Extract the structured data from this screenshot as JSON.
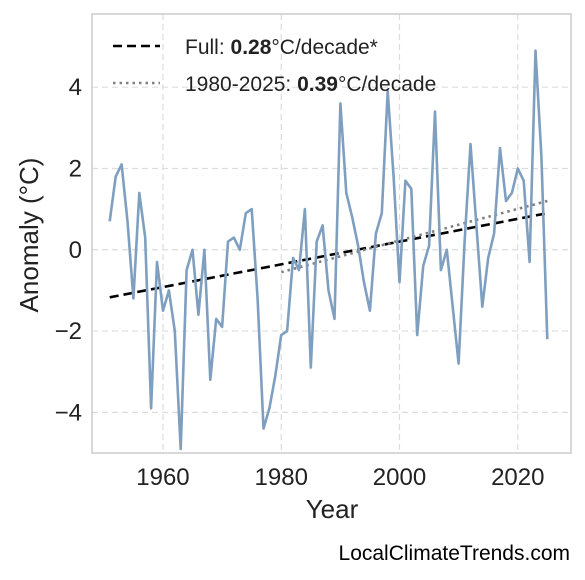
{
  "chart_data": {
    "type": "line",
    "title": "",
    "xlabel": "Year",
    "ylabel": "Anomaly (°C)",
    "xlim": [
      1948,
      2029
    ],
    "ylim": [
      -5.0,
      5.8
    ],
    "xticks": [
      1960,
      1980,
      2000,
      2020
    ],
    "yticks": [
      -4,
      -2,
      0,
      2,
      4
    ],
    "ytick_labels": [
      "−4",
      "−2",
      "0",
      "2",
      "4"
    ],
    "grid": true,
    "legend_position": "top-left",
    "colors": {
      "series": "#7f9fc0",
      "full_trend": "#000000",
      "recent_trend": "#808080",
      "grid": "#dddddd",
      "frame": "#cccccc"
    },
    "series": [
      {
        "x": [
          1951,
          1952,
          1953,
          1954,
          1955,
          1956,
          1957,
          1958,
          1959,
          1960,
          1961,
          1962,
          1963,
          1964,
          1965,
          1966,
          1967,
          1968,
          1969,
          1970,
          1971,
          1972,
          1973,
          1974,
          1975,
          1976,
          1977,
          1978,
          1979,
          1980,
          1981,
          1982,
          1983,
          1984,
          1985,
          1986,
          1987,
          1988,
          1989,
          1990,
          1991,
          1992,
          1993,
          1994,
          1995,
          1996,
          1997,
          1998,
          1999,
          2000,
          2001,
          2002,
          2003,
          2004,
          2005,
          2006,
          2007,
          2008,
          2009,
          2010,
          2011,
          2012,
          2013,
          2014,
          2015,
          2016,
          2017,
          2018,
          2019,
          2020,
          2021,
          2022,
          2023,
          2024,
          2025
        ],
        "values": [
          0.7,
          1.8,
          2.1,
          0.7,
          -1.2,
          1.4,
          0.3,
          -3.9,
          -0.3,
          -1.5,
          -1.0,
          -2.0,
          -4.9,
          -0.5,
          0.0,
          -1.6,
          0.0,
          -3.2,
          -1.7,
          -1.9,
          0.2,
          0.3,
          0.0,
          0.9,
          1.0,
          -1.2,
          -4.4,
          -3.9,
          -3.1,
          -2.1,
          -2.0,
          -0.2,
          -0.5,
          1.0,
          -2.9,
          0.2,
          0.6,
          -1.0,
          -1.7,
          3.6,
          1.4,
          0.8,
          0.1,
          -0.8,
          -1.5,
          0.4,
          0.9,
          3.9,
          1.8,
          -0.8,
          1.7,
          1.5,
          -2.1,
          -0.4,
          0.1,
          3.4,
          -0.5,
          0.0,
          -1.4,
          -2.8,
          0.2,
          2.6,
          0.6,
          -1.4,
          -0.2,
          0.4,
          2.5,
          1.2,
          1.4,
          2.0,
          1.7,
          -0.3,
          4.9,
          2.3,
          -2.2
        ]
      }
    ],
    "trends": [
      {
        "label": "Full: ",
        "rate": "0.28",
        "unit": "°C/decade*",
        "style": "dashed",
        "x": [
          1951,
          2025
        ],
        "y": [
          -1.17,
          0.9
        ]
      },
      {
        "label": "1980-2025: ",
        "rate": "0.39",
        "unit": "°C/decade",
        "style": "dotted",
        "x": [
          1980,
          2025
        ],
        "y": [
          -0.55,
          1.2
        ]
      }
    ]
  },
  "watermark": "LocalClimateTrends.com"
}
